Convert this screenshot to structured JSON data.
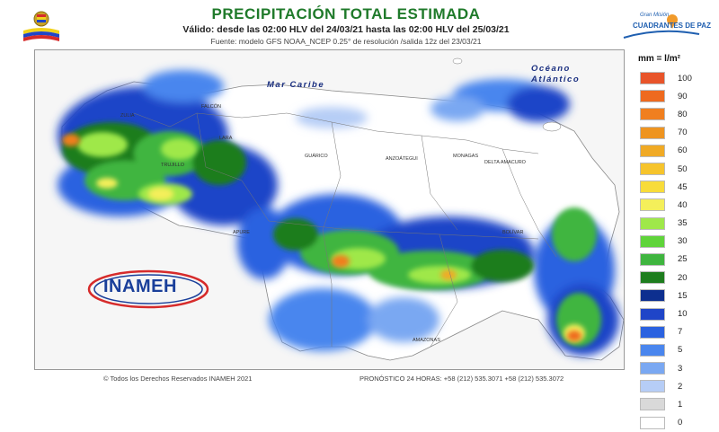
{
  "header": {
    "title": "PRECIPITACIÓN TOTAL ESTIMADA",
    "valid_text": "Válido: desde las 02:00 HLV del 24/03/21 hasta las 02:00 HLV del 25/03/21",
    "source_text": "Fuente: modelo GFS NOAA_NCEP 0.25° de resolución /salida 12z del 23/03/21"
  },
  "corner_logo": {
    "line1": "Gran Misión",
    "line2": "CUADRANTES DE PAZ",
    "icon": "location-pin-icon"
  },
  "seal": {
    "icon": "venezuela-coat-of-arms-icon"
  },
  "map": {
    "labels": {
      "caribbean": "Mar Caribe",
      "ocean_line1": "Océano",
      "ocean_line2": "Atlántico"
    },
    "small_labels": [
      "ZULIA",
      "FALCÓN",
      "LARA",
      "TRUJILLO",
      "GUÁRICO",
      "ANZOÁTEGUI",
      "MONAGAS",
      "DELTA AMACURO",
      "BOLÍVAR",
      "APURE",
      "AMAZONAS"
    ],
    "colors": {
      "dark_green": "#1e7d1e",
      "green": "#3fb53f",
      "light_green": "#7fd84a",
      "yellow": "#f4e34a",
      "orange": "#f19a2a",
      "red_orange": "#e8542a",
      "dark_blue": "#0d2f8f",
      "blue": "#1f56d8",
      "light_blue": "#5a8ff0",
      "pale_blue": "#b6cdf6"
    }
  },
  "legend": {
    "title": "mm = l/m²",
    "items": [
      {
        "label": "100",
        "color": "#e8542a"
      },
      {
        "label": "90",
        "color": "#ee6a1f"
      },
      {
        "label": "80",
        "color": "#f07f1f"
      },
      {
        "label": "70",
        "color": "#ee9420"
      },
      {
        "label": "60",
        "color": "#f0aa25"
      },
      {
        "label": "50",
        "color": "#f6c42c"
      },
      {
        "label": "45",
        "color": "#f8dc3a"
      },
      {
        "label": "40",
        "color": "#f4ef5a"
      },
      {
        "label": "35",
        "color": "#9fe84a"
      },
      {
        "label": "30",
        "color": "#5fd43a"
      },
      {
        "label": "25",
        "color": "#3fb53f"
      },
      {
        "label": "20",
        "color": "#1e7d1e"
      },
      {
        "label": "15",
        "color": "#0d2f8f"
      },
      {
        "label": "10",
        "color": "#1f45c8"
      },
      {
        "label": "7",
        "color": "#2b62e0"
      },
      {
        "label": "5",
        "color": "#4a86ee"
      },
      {
        "label": "3",
        "color": "#7aa8f2"
      },
      {
        "label": "2",
        "color": "#b6cdf6"
      },
      {
        "label": "1",
        "color": "#d9d9d9"
      },
      {
        "label": "0",
        "color": "#ffffff"
      }
    ]
  },
  "inameh_logo": {
    "text": "INAMEH"
  },
  "footer": {
    "copyright": "© Todos los Derechos Reservados INAMEH 2021",
    "forecast": "PRONÓSTICO 24 HORAS: +58 (212) 535.3071 +58 (212) 535.3072"
  }
}
